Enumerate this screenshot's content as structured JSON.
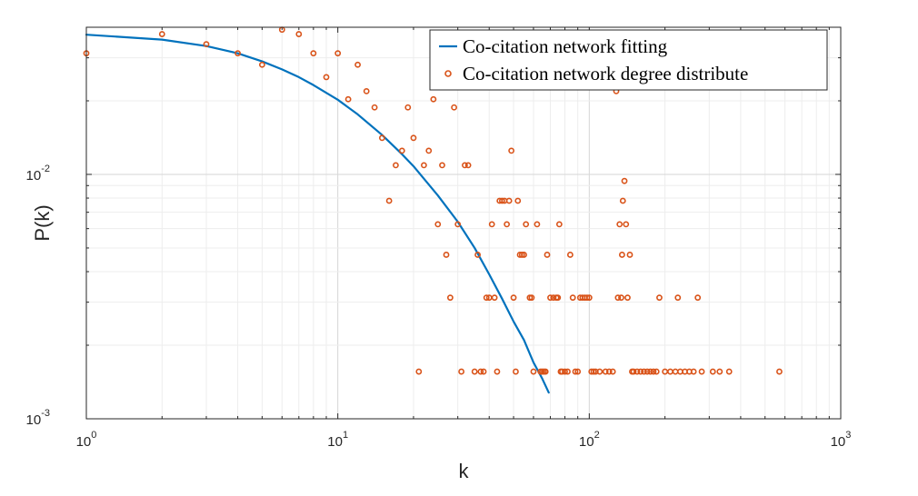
{
  "chart_data": {
    "type": "scatter",
    "title": "",
    "xlabel": "k",
    "ylabel": "P(k)",
    "x_scale": "log",
    "y_scale": "log",
    "xlim": [
      1,
      1000
    ],
    "ylim": [
      0.001,
      0.04
    ],
    "grid": true,
    "legend_position": "top-right",
    "x_ticks": [
      {
        "value": 1,
        "base": "10",
        "exp": "0"
      },
      {
        "value": 10,
        "base": "10",
        "exp": "1"
      },
      {
        "value": 100,
        "base": "10",
        "exp": "2"
      },
      {
        "value": 1000,
        "base": "10",
        "exp": "3"
      }
    ],
    "y_ticks": [
      {
        "value": 0.001,
        "base": "10",
        "exp": "-3"
      },
      {
        "value": 0.01,
        "base": "10",
        "exp": "-2"
      }
    ],
    "series": [
      {
        "name": "Co-citation network fitting",
        "kind": "line",
        "color": "#0072BD",
        "points": [
          [
            1,
            0.0373
          ],
          [
            2,
            0.0356
          ],
          [
            3,
            0.0335
          ],
          [
            4,
            0.0313
          ],
          [
            5,
            0.029
          ],
          [
            6,
            0.0269
          ],
          [
            7,
            0.025
          ],
          [
            8,
            0.0232
          ],
          [
            10,
            0.0202
          ],
          [
            12,
            0.0176
          ],
          [
            15,
            0.0145
          ],
          [
            18,
            0.0121
          ],
          [
            20,
            0.0108
          ],
          [
            25,
            0.0082
          ],
          [
            30,
            0.0064
          ],
          [
            35,
            0.005
          ],
          [
            40,
            0.0039
          ],
          [
            45,
            0.0031
          ],
          [
            50,
            0.0025
          ],
          [
            55,
            0.0021
          ],
          [
            60,
            0.0017
          ],
          [
            65,
            0.00146
          ],
          [
            69,
            0.00128
          ]
        ]
      },
      {
        "name": "Co-citation network degree distribute",
        "kind": "scatter",
        "color": "#D95319",
        "points": [
          [
            1,
            0.0313
          ],
          [
            2,
            0.0375
          ],
          [
            3,
            0.0341
          ],
          [
            4,
            0.0313
          ],
          [
            5,
            0.0281
          ],
          [
            6,
            0.0391
          ],
          [
            7,
            0.0375
          ],
          [
            8,
            0.0313
          ],
          [
            9,
            0.025
          ],
          [
            10,
            0.0313
          ],
          [
            11,
            0.0203
          ],
          [
            12,
            0.0281
          ],
          [
            13,
            0.0219
          ],
          [
            14,
            0.0188
          ],
          [
            15,
            0.0141
          ],
          [
            16,
            0.0078
          ],
          [
            17,
            0.0109
          ],
          [
            18,
            0.0125
          ],
          [
            19,
            0.0188
          ],
          [
            20,
            0.0141
          ],
          [
            21,
            0.00156
          ],
          [
            22,
            0.0109
          ],
          [
            23,
            0.0125
          ],
          [
            24,
            0.0203
          ],
          [
            25,
            0.00625
          ],
          [
            26,
            0.0109
          ],
          [
            27,
            0.00469
          ],
          [
            28,
            0.00313
          ],
          [
            29,
            0.0188
          ],
          [
            30,
            0.00625
          ],
          [
            31,
            0.00156
          ],
          [
            32,
            0.0109
          ],
          [
            33,
            0.0109
          ],
          [
            35,
            0.00156
          ],
          [
            36,
            0.00469
          ],
          [
            37,
            0.00156
          ],
          [
            38,
            0.00156
          ],
          [
            39,
            0.00313
          ],
          [
            40,
            0.00313
          ],
          [
            41,
            0.00625
          ],
          [
            42,
            0.00313
          ],
          [
            43,
            0.00156
          ],
          [
            44,
            0.0078
          ],
          [
            45,
            0.0078
          ],
          [
            46,
            0.0078
          ],
          [
            47,
            0.00625
          ],
          [
            48,
            0.0078
          ],
          [
            49,
            0.0125
          ],
          [
            50,
            0.00313
          ],
          [
            51,
            0.00156
          ],
          [
            52,
            0.0078
          ],
          [
            53,
            0.00469
          ],
          [
            54,
            0.00469
          ],
          [
            55,
            0.00469
          ],
          [
            56,
            0.00625
          ],
          [
            58,
            0.00313
          ],
          [
            59,
            0.00313
          ],
          [
            60,
            0.00156
          ],
          [
            62,
            0.00625
          ],
          [
            64,
            0.00156
          ],
          [
            65,
            0.00156
          ],
          [
            66,
            0.00156
          ],
          [
            67,
            0.00156
          ],
          [
            68,
            0.00469
          ],
          [
            70,
            0.00313
          ],
          [
            72,
            0.00313
          ],
          [
            74,
            0.00313
          ],
          [
            75,
            0.00313
          ],
          [
            76,
            0.00625
          ],
          [
            77,
            0.00156
          ],
          [
            78,
            0.00156
          ],
          [
            80,
            0.00156
          ],
          [
            82,
            0.00156
          ],
          [
            84,
            0.00469
          ],
          [
            86,
            0.00313
          ],
          [
            88,
            0.00156
          ],
          [
            90,
            0.00156
          ],
          [
            92,
            0.00313
          ],
          [
            94,
            0.00313
          ],
          [
            96,
            0.00313
          ],
          [
            98,
            0.00313
          ],
          [
            100,
            0.00313
          ],
          [
            102,
            0.00156
          ],
          [
            104,
            0.00156
          ],
          [
            106,
            0.00156
          ],
          [
            110,
            0.00156
          ],
          [
            116,
            0.00156
          ],
          [
            120,
            0.00156
          ],
          [
            124,
            0.00156
          ],
          [
            128,
            0.0219
          ],
          [
            130,
            0.00313
          ],
          [
            132,
            0.00625
          ],
          [
            134,
            0.00313
          ],
          [
            135,
            0.00469
          ],
          [
            136,
            0.0078
          ],
          [
            138,
            0.0094
          ],
          [
            140,
            0.00625
          ],
          [
            142,
            0.00313
          ],
          [
            145,
            0.00469
          ],
          [
            148,
            0.00156
          ],
          [
            150,
            0.00156
          ],
          [
            155,
            0.00156
          ],
          [
            160,
            0.00156
          ],
          [
            165,
            0.00156
          ],
          [
            170,
            0.00156
          ],
          [
            175,
            0.00156
          ],
          [
            180,
            0.00156
          ],
          [
            185,
            0.00156
          ],
          [
            190,
            0.00313
          ],
          [
            200,
            0.00156
          ],
          [
            210,
            0.00156
          ],
          [
            220,
            0.00156
          ],
          [
            225,
            0.00313
          ],
          [
            230,
            0.00156
          ],
          [
            240,
            0.00156
          ],
          [
            250,
            0.00156
          ],
          [
            260,
            0.00156
          ],
          [
            270,
            0.00313
          ],
          [
            280,
            0.00156
          ],
          [
            310,
            0.00156
          ],
          [
            330,
            0.00156
          ],
          [
            360,
            0.00156
          ],
          [
            570,
            0.00156
          ]
        ]
      }
    ]
  }
}
